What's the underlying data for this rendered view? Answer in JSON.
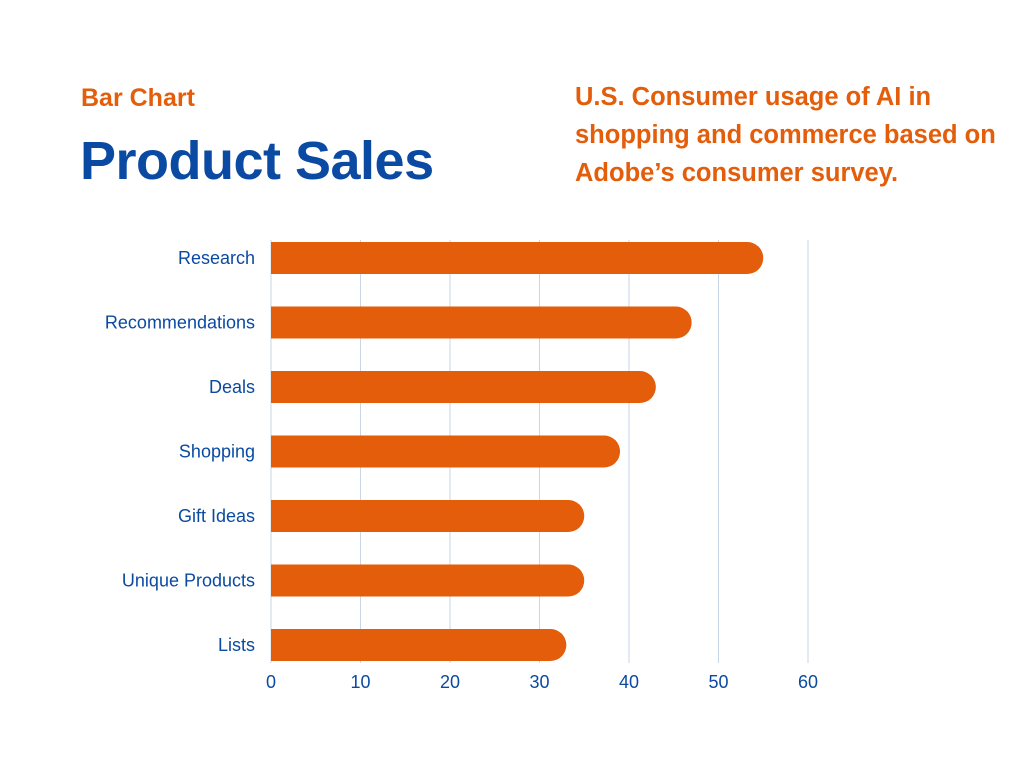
{
  "header": {
    "eyebrow": "Bar Chart",
    "title": "Product Sales",
    "subtitle": "U.S. Consumer usage of AI in shopping and commerce based on Adobe’s consumer survey."
  },
  "colors": {
    "bar": "#e35d0a",
    "text": "#0a4aa2",
    "grid": "#c8d6e8"
  },
  "chart_data": {
    "type": "bar",
    "orientation": "horizontal",
    "title": "Product Sales",
    "xlabel": "",
    "ylabel": "",
    "categories": [
      "Research",
      "Recommendations",
      "Deals",
      "Shopping",
      "Gift Ideas",
      "Unique Products",
      "Lists"
    ],
    "values": [
      55,
      47,
      43,
      39,
      35,
      35,
      33
    ],
    "xlim": [
      0,
      60
    ],
    "xticks": [
      0,
      10,
      20,
      30,
      40,
      50,
      60
    ],
    "grid": "vertical",
    "legend": "none"
  }
}
